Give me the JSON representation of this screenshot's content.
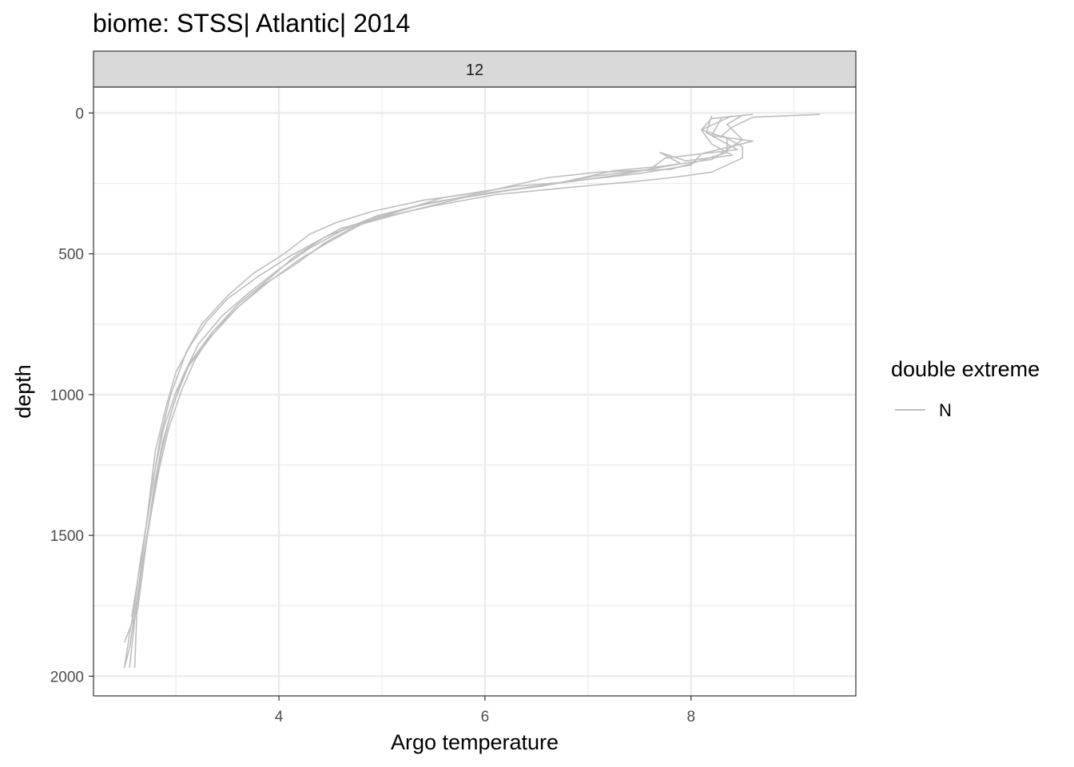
{
  "chart_data": {
    "type": "line",
    "title": "biome: STSS| Atlantic| 2014",
    "facet_label": "12",
    "xlabel": "Argo temperature",
    "ylabel": "depth",
    "xlim": [
      2.2,
      9.6
    ],
    "ylim": [
      2070,
      -92
    ],
    "y_reversed": true,
    "x_ticks": [
      4,
      6,
      8
    ],
    "x_tick_labels": [
      "4",
      "6",
      "8"
    ],
    "y_ticks": [
      0,
      500,
      1000,
      1500,
      2000
    ],
    "y_tick_labels": [
      "0",
      "500",
      "1000",
      "1500",
      "2000"
    ],
    "grid": true,
    "legend": {
      "title": "double extreme",
      "position": "right",
      "entries": [
        {
          "label": "N",
          "color": "#bebebe"
        }
      ]
    },
    "line_color": "#bebebe",
    "series": [
      {
        "x": [
          9.25,
          8.6,
          8.4,
          8.3,
          8.5,
          8.5,
          8.2,
          7.8,
          7.4,
          6.8,
          6.1,
          5.5,
          5.0,
          4.6,
          4.4,
          4.1,
          3.8,
          3.5,
          3.3,
          3.15,
          3.0,
          2.9,
          2.8,
          2.75,
          2.7,
          2.65,
          2.6,
          2.55
        ],
        "y": [
          5,
          15,
          50,
          80,
          120,
          160,
          210,
          230,
          245,
          265,
          290,
          330,
          370,
          410,
          450,
          510,
          580,
          660,
          740,
          820,
          920,
          1050,
          1200,
          1350,
          1500,
          1650,
          1800,
          1970
        ]
      },
      {
        "x": [
          8.6,
          8.2,
          8.1,
          8.35,
          8.35,
          8.0,
          7.8,
          7.1,
          6.6,
          6.0,
          5.4,
          4.9,
          4.55,
          4.3,
          4.05,
          3.75,
          3.5,
          3.25,
          3.1,
          2.95,
          2.85,
          2.78,
          2.72,
          2.65,
          2.6,
          2.55,
          2.5
        ],
        "y": [
          5,
          20,
          60,
          90,
          140,
          180,
          200,
          210,
          230,
          280,
          310,
          350,
          390,
          430,
          500,
          570,
          650,
          750,
          850,
          1000,
          1150,
          1300,
          1450,
          1600,
          1750,
          1850,
          1970
        ]
      },
      {
        "x": [
          8.4,
          8.1,
          8.2,
          8.4,
          7.95,
          7.7,
          7.9,
          7.3,
          6.8,
          6.3,
          5.6,
          5.2,
          4.75,
          4.45,
          4.15,
          3.85,
          3.6,
          3.35,
          3.15,
          3.0,
          2.88,
          2.8,
          2.74,
          2.68,
          2.62,
          2.57
        ],
        "y": [
          10,
          60,
          110,
          150,
          170,
          140,
          180,
          220,
          245,
          260,
          300,
          345,
          400,
          460,
          540,
          610,
          690,
          780,
          880,
          990,
          1120,
          1260,
          1400,
          1540,
          1680,
          1790
        ]
      },
      {
        "x": [
          8.2,
          8.15,
          8.45,
          7.75,
          7.6,
          7.05,
          6.55,
          5.9,
          5.35,
          4.85,
          4.45,
          4.15,
          3.9,
          3.6,
          3.35,
          3.18,
          3.05,
          2.93,
          2.84,
          2.77,
          2.71,
          2.66,
          2.62,
          2.6
        ],
        "y": [
          10,
          70,
          130,
          160,
          200,
          225,
          260,
          290,
          330,
          380,
          440,
          510,
          590,
          680,
          780,
          880,
          990,
          1120,
          1260,
          1400,
          1530,
          1650,
          1780,
          1970
        ]
      },
      {
        "x": [
          8.3,
          8.2,
          8.6,
          8.1,
          8.0,
          7.5,
          6.9,
          6.4,
          5.8,
          5.25,
          4.8,
          4.5,
          4.2,
          3.9,
          3.6,
          3.35,
          3.12,
          2.98,
          2.87,
          2.79,
          2.73,
          2.68,
          2.63,
          2.5
        ],
        "y": [
          15,
          80,
          100,
          145,
          185,
          215,
          240,
          265,
          300,
          350,
          395,
          455,
          520,
          600,
          690,
          790,
          900,
          1030,
          1170,
          1320,
          1480,
          1620,
          1760,
          1880
        ]
      },
      {
        "x": [
          8.5,
          8.35,
          8.5,
          8.2,
          7.7,
          7.25,
          6.7,
          6.1,
          5.45,
          4.95,
          4.6,
          4.3,
          4.0,
          3.72,
          3.45,
          3.22,
          3.06,
          2.94,
          2.85,
          2.78,
          2.72,
          2.66,
          2.6,
          2.55,
          2.5
        ],
        "y": [
          8,
          40,
          95,
          165,
          190,
          205,
          250,
          280,
          320,
          365,
          420,
          480,
          555,
          635,
          720,
          820,
          940,
          1080,
          1220,
          1360,
          1500,
          1640,
          1780,
          1900,
          1970
        ]
      }
    ]
  }
}
